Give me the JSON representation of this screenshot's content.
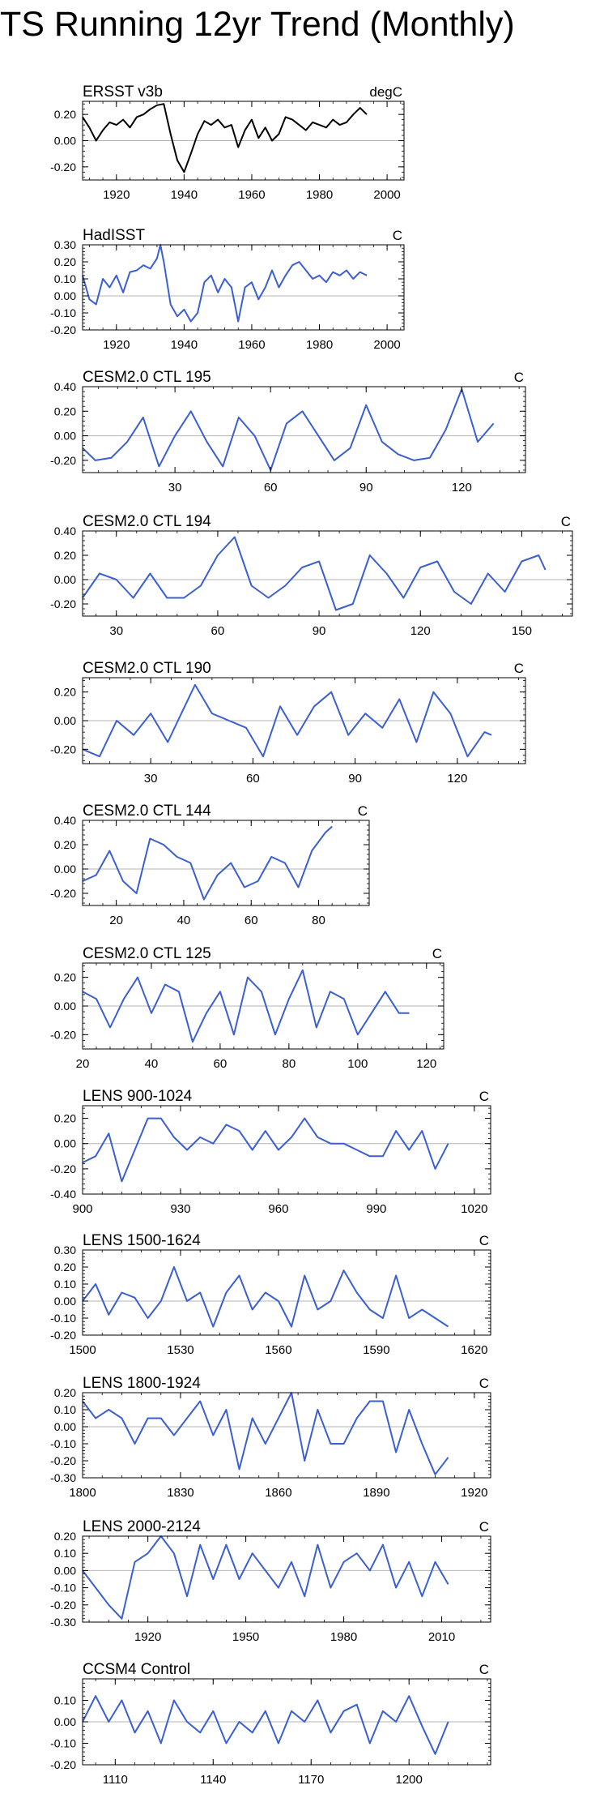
{
  "page": {
    "title": "TS Running 12yr Trend (Monthly)"
  },
  "chart_data": [
    {
      "type": "line",
      "title": "ERSST v3b",
      "units": "degC",
      "color": "#000000",
      "xlim": [
        1910,
        2005
      ],
      "xticks": [
        1920,
        1940,
        1960,
        1980,
        2000
      ],
      "ylim": [
        -0.3,
        0.3
      ],
      "yticks": [
        -0.2,
        0.0,
        0.2
      ],
      "ydec": 2,
      "x": [
        1910,
        1912,
        1914,
        1916,
        1918,
        1920,
        1922,
        1924,
        1926,
        1928,
        1930,
        1932,
        1934,
        1936,
        1938,
        1940,
        1942,
        1944,
        1946,
        1948,
        1950,
        1952,
        1954,
        1956,
        1958,
        1960,
        1962,
        1964,
        1966,
        1968,
        1970,
        1972,
        1974,
        1976,
        1978,
        1980,
        1982,
        1984,
        1986,
        1988,
        1990,
        1992,
        1994
      ],
      "y": [
        0.18,
        0.1,
        0.0,
        0.08,
        0.14,
        0.12,
        0.16,
        0.1,
        0.18,
        0.2,
        0.24,
        0.27,
        0.28,
        0.05,
        -0.15,
        -0.24,
        -0.1,
        0.05,
        0.15,
        0.12,
        0.16,
        0.1,
        0.12,
        -0.05,
        0.08,
        0.16,
        0.02,
        0.1,
        0.0,
        0.05,
        0.18,
        0.16,
        0.12,
        0.08,
        0.14,
        0.12,
        0.1,
        0.16,
        0.12,
        0.14,
        0.2,
        0.25,
        0.2
      ]
    },
    {
      "type": "line",
      "title": "HadISST",
      "units": "C",
      "color": "#3b5fd0",
      "xlim": [
        1910,
        2005
      ],
      "xticks": [
        1920,
        1940,
        1960,
        1980,
        2000
      ],
      "ylim": [
        -0.2,
        0.3
      ],
      "yticks": [
        -0.2,
        -0.1,
        0.0,
        0.1,
        0.2,
        0.3
      ],
      "ydec": 2,
      "x": [
        1910,
        1912,
        1914,
        1916,
        1918,
        1920,
        1922,
        1924,
        1926,
        1928,
        1930,
        1932,
        1933,
        1934,
        1936,
        1938,
        1940,
        1942,
        1944,
        1946,
        1948,
        1950,
        1952,
        1954,
        1956,
        1958,
        1960,
        1962,
        1964,
        1966,
        1968,
        1970,
        1972,
        1974,
        1976,
        1978,
        1980,
        1982,
        1984,
        1986,
        1988,
        1990,
        1992,
        1994
      ],
      "y": [
        0.12,
        -0.02,
        -0.05,
        0.1,
        0.05,
        0.12,
        0.02,
        0.14,
        0.15,
        0.18,
        0.16,
        0.22,
        0.3,
        0.2,
        -0.05,
        -0.12,
        -0.08,
        -0.15,
        -0.1,
        0.08,
        0.12,
        0.02,
        0.1,
        0.05,
        -0.15,
        0.05,
        0.08,
        -0.02,
        0.05,
        0.15,
        0.05,
        0.12,
        0.18,
        0.2,
        0.15,
        0.1,
        0.12,
        0.08,
        0.14,
        0.12,
        0.15,
        0.1,
        0.14,
        0.12
      ]
    },
    {
      "type": "line",
      "title": "CESM2.0 CTL 195",
      "units": "C",
      "color": "#3b5fd0",
      "xlim": [
        1,
        140
      ],
      "xticks": [
        30,
        60,
        90,
        120
      ],
      "ylim": [
        -0.3,
        0.4
      ],
      "yticks": [
        -0.2,
        0.0,
        0.2,
        0.4
      ],
      "ydec": 2,
      "x": [
        1,
        5,
        10,
        15,
        20,
        25,
        30,
        35,
        40,
        45,
        50,
        55,
        60,
        65,
        70,
        75,
        80,
        85,
        90,
        95,
        100,
        105,
        110,
        115,
        120,
        125,
        130
      ],
      "y": [
        -0.1,
        -0.2,
        -0.18,
        -0.05,
        0.15,
        -0.25,
        0.0,
        0.2,
        -0.05,
        -0.25,
        0.15,
        0.0,
        -0.28,
        0.1,
        0.2,
        0.0,
        -0.2,
        -0.1,
        0.25,
        -0.05,
        -0.15,
        -0.2,
        -0.18,
        0.05,
        0.38,
        -0.05,
        0.1
      ]
    },
    {
      "type": "line",
      "title": "CESM2.0 CTL 194",
      "units": "C",
      "color": "#3b5fd0",
      "xlim": [
        20,
        165
      ],
      "xticks": [
        30,
        60,
        90,
        120,
        150
      ],
      "ylim": [
        -0.3,
        0.4
      ],
      "yticks": [
        -0.2,
        0.0,
        0.2,
        0.4
      ],
      "ydec": 2,
      "x": [
        20,
        25,
        30,
        35,
        40,
        45,
        50,
        55,
        60,
        65,
        70,
        75,
        80,
        85,
        90,
        95,
        100,
        105,
        110,
        115,
        120,
        125,
        130,
        135,
        140,
        145,
        150,
        155,
        157
      ],
      "y": [
        -0.15,
        0.05,
        0.0,
        -0.15,
        0.05,
        -0.15,
        -0.15,
        -0.05,
        0.2,
        0.35,
        -0.05,
        -0.15,
        -0.05,
        0.1,
        0.15,
        -0.25,
        -0.2,
        0.2,
        0.05,
        -0.15,
        0.1,
        0.15,
        -0.1,
        -0.2,
        0.05,
        -0.1,
        0.15,
        0.2,
        0.08
      ]
    },
    {
      "type": "line",
      "title": "CESM2.0 CTL 190",
      "units": "C",
      "color": "#3b5fd0",
      "xlim": [
        10,
        140
      ],
      "xticks": [
        30,
        60,
        90,
        120
      ],
      "ylim": [
        -0.3,
        0.3
      ],
      "yticks": [
        -0.2,
        0.0,
        0.2
      ],
      "ydec": 2,
      "x": [
        10,
        15,
        20,
        25,
        30,
        35,
        40,
        43,
        48,
        53,
        58,
        63,
        68,
        73,
        78,
        83,
        88,
        93,
        98,
        103,
        108,
        113,
        118,
        123,
        128,
        130
      ],
      "y": [
        -0.2,
        -0.25,
        0.0,
        -0.1,
        0.05,
        -0.15,
        0.1,
        0.25,
        0.05,
        0.0,
        -0.05,
        -0.25,
        0.1,
        -0.1,
        0.1,
        0.2,
        -0.1,
        0.05,
        -0.05,
        0.15,
        -0.15,
        0.2,
        0.05,
        -0.25,
        -0.08,
        -0.1
      ]
    },
    {
      "type": "line",
      "title": "CESM2.0 CTL 144",
      "units": "C",
      "color": "#3b5fd0",
      "xlim": [
        10,
        95
      ],
      "xticks": [
        20,
        40,
        60,
        80
      ],
      "ylim": [
        -0.3,
        0.4
      ],
      "yticks": [
        -0.2,
        0.0,
        0.2,
        0.4
      ],
      "ydec": 2,
      "x": [
        10,
        14,
        18,
        22,
        26,
        30,
        34,
        38,
        42,
        46,
        50,
        54,
        58,
        62,
        66,
        70,
        74,
        78,
        82,
        84
      ],
      "y": [
        -0.1,
        -0.05,
        0.15,
        -0.1,
        -0.2,
        0.25,
        0.2,
        0.1,
        0.05,
        -0.25,
        -0.05,
        0.05,
        -0.15,
        -0.1,
        0.1,
        0.05,
        -0.15,
        0.15,
        0.3,
        0.35
      ]
    },
    {
      "type": "line",
      "title": "CESM2.0 CTL 125",
      "units": "C",
      "color": "#3b5fd0",
      "xlim": [
        20,
        125
      ],
      "xticks": [
        20,
        40,
        60,
        80,
        100,
        120
      ],
      "ylim": [
        -0.3,
        0.3
      ],
      "yticks": [
        -0.2,
        0.0,
        0.2
      ],
      "ydec": 2,
      "x": [
        20,
        24,
        28,
        32,
        36,
        40,
        44,
        48,
        52,
        56,
        60,
        64,
        68,
        72,
        76,
        80,
        84,
        88,
        92,
        96,
        100,
        104,
        108,
        112,
        115
      ],
      "y": [
        0.1,
        0.05,
        -0.15,
        0.05,
        0.2,
        -0.05,
        0.15,
        0.1,
        -0.25,
        -0.05,
        0.1,
        -0.2,
        0.2,
        0.1,
        -0.2,
        0.05,
        0.25,
        -0.15,
        0.1,
        0.05,
        -0.2,
        -0.05,
        0.1,
        -0.05,
        -0.05
      ]
    },
    {
      "type": "line",
      "title": "LENS 900-1024",
      "units": "C",
      "color": "#3b5fd0",
      "xlim": [
        900,
        1025
      ],
      "xticks": [
        900,
        930,
        960,
        990,
        1020
      ],
      "ylim": [
        -0.4,
        0.3
      ],
      "yticks": [
        -0.4,
        -0.2,
        0.0,
        0.2
      ],
      "ydec": 2,
      "x": [
        900,
        904,
        908,
        912,
        916,
        920,
        924,
        928,
        932,
        936,
        940,
        944,
        948,
        952,
        956,
        960,
        964,
        968,
        972,
        976,
        980,
        984,
        988,
        992,
        996,
        1000,
        1004,
        1008,
        1012
      ],
      "y": [
        -0.15,
        -0.1,
        0.08,
        -0.3,
        -0.05,
        0.2,
        0.2,
        0.05,
        -0.05,
        0.05,
        0.0,
        0.15,
        0.1,
        -0.05,
        0.1,
        -0.05,
        0.05,
        0.2,
        0.05,
        0.0,
        0.0,
        -0.05,
        -0.1,
        -0.1,
        0.1,
        -0.05,
        0.1,
        -0.2,
        0.0
      ]
    },
    {
      "type": "line",
      "title": "LENS 1500-1624",
      "units": "C",
      "color": "#3b5fd0",
      "xlim": [
        1500,
        1625
      ],
      "xticks": [
        1500,
        1530,
        1560,
        1590,
        1620
      ],
      "ylim": [
        -0.2,
        0.3
      ],
      "yticks": [
        -0.2,
        -0.1,
        0.0,
        0.1,
        0.2,
        0.3
      ],
      "ydec": 2,
      "x": [
        1500,
        1504,
        1508,
        1512,
        1516,
        1520,
        1524,
        1528,
        1532,
        1536,
        1540,
        1544,
        1548,
        1552,
        1556,
        1560,
        1564,
        1568,
        1572,
        1576,
        1580,
        1584,
        1588,
        1592,
        1596,
        1600,
        1604,
        1608,
        1612
      ],
      "y": [
        0.0,
        0.1,
        -0.08,
        0.05,
        0.02,
        -0.1,
        0.0,
        0.2,
        0.0,
        0.05,
        -0.15,
        0.05,
        0.15,
        -0.05,
        0.05,
        0.0,
        -0.15,
        0.15,
        -0.05,
        0.0,
        0.18,
        0.05,
        -0.05,
        -0.1,
        0.15,
        -0.1,
        -0.05,
        -0.1,
        -0.15
      ]
    },
    {
      "type": "line",
      "title": "LENS 1800-1924",
      "units": "C",
      "color": "#3b5fd0",
      "xlim": [
        1800,
        1925
      ],
      "xticks": [
        1800,
        1830,
        1860,
        1890,
        1920
      ],
      "ylim": [
        -0.3,
        0.2
      ],
      "yticks": [
        -0.3,
        -0.2,
        -0.1,
        0.0,
        0.1,
        0.2
      ],
      "ydec": 2,
      "x": [
        1800,
        1804,
        1808,
        1812,
        1816,
        1820,
        1824,
        1828,
        1832,
        1836,
        1840,
        1844,
        1848,
        1852,
        1856,
        1860,
        1864,
        1868,
        1872,
        1876,
        1880,
        1884,
        1888,
        1892,
        1896,
        1900,
        1904,
        1908,
        1912
      ],
      "y": [
        0.15,
        0.05,
        0.1,
        0.05,
        -0.1,
        0.05,
        0.05,
        -0.05,
        0.05,
        0.15,
        -0.05,
        0.1,
        -0.25,
        0.05,
        -0.1,
        0.05,
        0.2,
        -0.2,
        0.1,
        -0.1,
        -0.1,
        0.05,
        0.15,
        0.15,
        -0.15,
        0.1,
        -0.1,
        -0.28,
        -0.18
      ]
    },
    {
      "type": "line",
      "title": "LENS 2000-2124",
      "units": "C",
      "color": "#3b5fd0",
      "xlim": [
        1900,
        2025
      ],
      "xticks": [
        1920,
        1950,
        1980,
        2010
      ],
      "ylim": [
        -0.3,
        0.2
      ],
      "yticks": [
        -0.3,
        -0.2,
        -0.1,
        0.0,
        0.1,
        0.2
      ],
      "ydec": 2,
      "x": [
        1900,
        1904,
        1908,
        1912,
        1916,
        1920,
        1924,
        1928,
        1932,
        1936,
        1940,
        1944,
        1948,
        1952,
        1956,
        1960,
        1964,
        1968,
        1972,
        1976,
        1980,
        1984,
        1988,
        1992,
        1996,
        2000,
        2004,
        2008,
        2012
      ],
      "y": [
        0.0,
        -0.1,
        -0.2,
        -0.28,
        0.05,
        0.1,
        0.2,
        0.1,
        -0.15,
        0.15,
        -0.05,
        0.15,
        -0.05,
        0.1,
        0.0,
        -0.1,
        0.05,
        -0.15,
        0.15,
        -0.1,
        0.05,
        0.1,
        0.0,
        0.15,
        -0.1,
        0.05,
        -0.15,
        0.05,
        -0.08
      ]
    },
    {
      "type": "line",
      "title": "CCSM4 Control",
      "units": "C",
      "color": "#3b5fd0",
      "xlim": [
        1100,
        1225
      ],
      "xticks": [
        1110,
        1140,
        1170,
        1200
      ],
      "ylim": [
        -0.2,
        0.2
      ],
      "yticks": [
        -0.2,
        -0.1,
        0.0,
        0.1
      ],
      "ydec": 2,
      "x": [
        1100,
        1104,
        1108,
        1112,
        1116,
        1120,
        1124,
        1128,
        1132,
        1136,
        1140,
        1144,
        1148,
        1152,
        1156,
        1160,
        1164,
        1168,
        1172,
        1176,
        1180,
        1184,
        1188,
        1192,
        1196,
        1200,
        1204,
        1208,
        1212
      ],
      "y": [
        0.0,
        0.12,
        0.0,
        0.1,
        -0.05,
        0.05,
        -0.1,
        0.1,
        0.0,
        -0.05,
        0.05,
        -0.1,
        0.0,
        -0.05,
        0.05,
        -0.1,
        0.05,
        0.0,
        0.1,
        -0.05,
        0.05,
        0.08,
        -0.1,
        0.05,
        0.0,
        0.12,
        -0.02,
        -0.15,
        0.0
      ]
    }
  ]
}
